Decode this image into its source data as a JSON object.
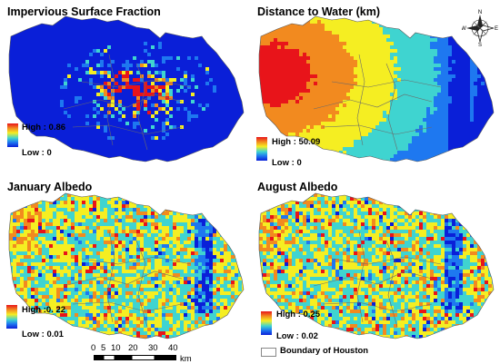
{
  "panels": [
    {
      "id": "impervious",
      "title": "Impervious Surface Fraction",
      "legend_high": "High : 0.86",
      "legend_low": "Low : 0",
      "pattern": "impervious"
    },
    {
      "id": "distance",
      "title": "Distance to Water (km)",
      "legend_high": "High : 50.09",
      "legend_low": "Low : 0",
      "pattern": "distance"
    },
    {
      "id": "jan",
      "title": "January Albedo",
      "legend_high": "High :0. 22",
      "legend_low": "Low : 0.01",
      "pattern": "albedo"
    },
    {
      "id": "aug",
      "title": "August Albedo",
      "legend_high": "High : 0.25",
      "legend_low": "Low : 0.02",
      "pattern": "albedo"
    }
  ],
  "colors": {
    "ramp": [
      "#0a1fd8",
      "#1e78f0",
      "#3fd4d0",
      "#f5ee22",
      "#f28a1f",
      "#e8141a"
    ],
    "boundary": "#6a6a6a"
  },
  "compass": {
    "icon": "compass-rose-icon",
    "n": "N",
    "s": "S",
    "e": "E",
    "w": "W"
  },
  "scalebar": {
    "ticks": [
      "0",
      "5",
      "10",
      "20",
      "30",
      "40"
    ],
    "unit": "km"
  },
  "boundary_legend": {
    "label": "Boundary of Houston"
  }
}
